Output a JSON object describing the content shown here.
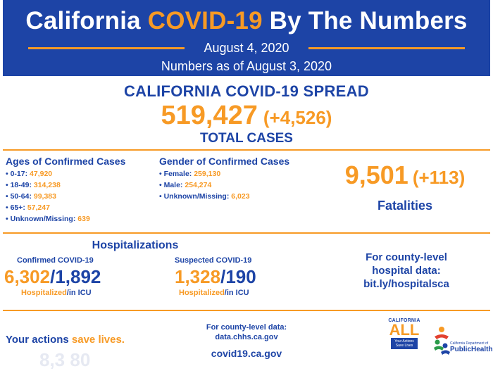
{
  "header": {
    "title_part1": "California ",
    "title_accent": "COVID-19",
    "title_part2": " By The Numbers",
    "date": "August 4, 2020",
    "as_of": "Numbers as of August 3, 2020"
  },
  "spread": {
    "title": "CALIFORNIA COVID-19 SPREAD",
    "total_cases": "519,427",
    "total_delta": "(+4,526)",
    "total_label": "TOTAL CASES"
  },
  "ages": {
    "title": "Ages of Confirmed Cases",
    "items": [
      {
        "label": "• 0-17: ",
        "value": "47,920"
      },
      {
        "label": "• 18-49: ",
        "value": "314,238"
      },
      {
        "label": "• 50-64: ",
        "value": "99,383"
      },
      {
        "label": "• 65+: ",
        "value": "57,247"
      },
      {
        "label": "• Unknown/Missing: ",
        "value": "639"
      }
    ]
  },
  "gender": {
    "title": "Gender of Confirmed Cases",
    "items": [
      {
        "label": "• Female: ",
        "value": "259,130"
      },
      {
        "label": "• Male: ",
        "value": "254,274"
      },
      {
        "label": "• Unknown/Missing: ",
        "value": "6,023"
      }
    ]
  },
  "fatalities": {
    "count": "9,501",
    "delta": "(+113)",
    "label": "Fatalities"
  },
  "hospitalizations": {
    "title": "Hospitalizations",
    "confirmed": {
      "label": "Confirmed COVID-19",
      "hospitalized": "6,302",
      "separator": "/",
      "icu": "1,892",
      "cap_hosp": "Hospitalized",
      "cap_icu": "/in ICU"
    },
    "suspected": {
      "label": "Suspected COVID-19",
      "hospitalized": "1,328",
      "separator": "/",
      "icu": "190",
      "cap_hosp": "Hospitalized",
      "cap_icu": "/in ICU"
    }
  },
  "county_hospital": {
    "line1": "For county-level",
    "line2": "hospital data:",
    "line3": "bit.ly/hospitalsca"
  },
  "footer": {
    "actions_prefix": "Your actions ",
    "actions_accent": "save lives.",
    "ghost_text": "8,3 80",
    "county_data_line1": "For county-level data:",
    "county_data_line2": "data.chhs.ca.gov",
    "site": "covid19.ca.gov"
  },
  "logos": {
    "ca_all_top": "CALIFORNIA",
    "ca_all_main": "ALL",
    "ca_all_box": "Your Actions Save Lives",
    "cdph_small": "California Department of",
    "cdph_main": "PublicHealth"
  },
  "colors": {
    "brand_blue": "#1d44a6",
    "accent_orange": "#f79a25"
  }
}
